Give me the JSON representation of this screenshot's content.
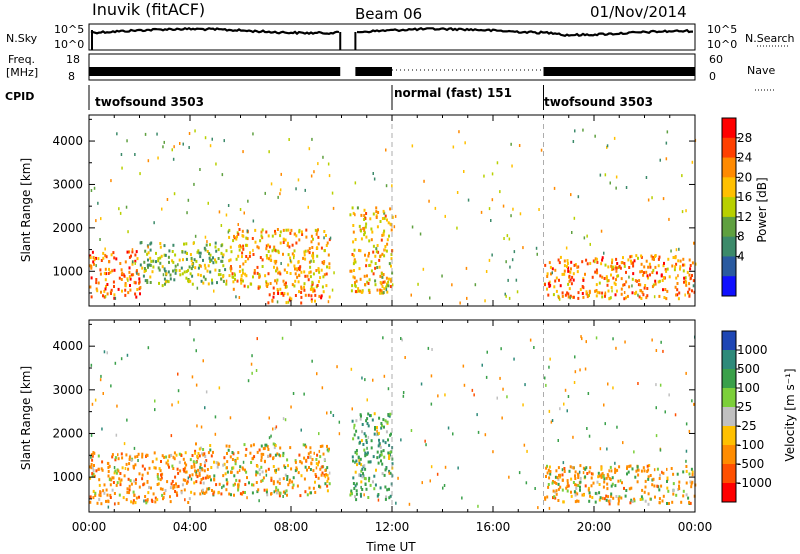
{
  "header": {
    "station": "Inuvik (fitACF)",
    "beam": "Beam 06",
    "date": "01/Nov/2014"
  },
  "nsky_panel": {
    "label": "N.Sky",
    "ytick_top": "10^5",
    "ytick_bottom": "10^0",
    "right_label": "N.Search"
  },
  "freq_panel": {
    "label_line1": "Freq.",
    "label_line2": "[MHz]",
    "ytick_top": "18",
    "ytick_bottom": "8",
    "right_tick_top": "60",
    "right_tick_bottom": "0",
    "right_label": "Nave"
  },
  "cpid_panel": {
    "label": "CPID",
    "segments": [
      {
        "label": "twofsound 3503",
        "start_hour": 0,
        "end_hour": 12
      },
      {
        "label": "normal (fast) 151",
        "start_hour": 12,
        "end_hour": 18
      },
      {
        "label": "twofsound 3503",
        "start_hour": 18,
        "end_hour": 24
      }
    ]
  },
  "power_colorbar": {
    "label": "Power [dB]",
    "ticks": [
      "28",
      "24",
      "20",
      "16",
      "12",
      "8",
      "4"
    ],
    "colors": [
      "#ff0000",
      "#ff4000",
      "#ff8a00",
      "#ffc000",
      "#b8d000",
      "#5fa040",
      "#3c8a6a",
      "#2a5aa0",
      "#1010ff"
    ]
  },
  "velocity_colorbar": {
    "label": "Velocity [m s⁻¹]",
    "ticks": [
      "1000",
      "500",
      "100",
      "25",
      "-25",
      "-100",
      "-500",
      "-1000"
    ],
    "colors": [
      "#1e46b4",
      "#2e8a7a",
      "#3aa04a",
      "#7ccf3a",
      "#c0c0c0",
      "#ffc000",
      "#ff8c00",
      "#ff5000",
      "#ff0000"
    ]
  },
  "chart_data": {
    "type": "heatmap",
    "xlabel": "Time UT",
    "xticks": [
      "00:00",
      "04:00",
      "08:00",
      "12:00",
      "16:00",
      "20:00",
      "00:00"
    ],
    "xlim_hours": [
      0,
      24
    ],
    "ylabel": "Slant Range [km]",
    "yticks": [
      "1000",
      "2000",
      "3000",
      "4000"
    ],
    "ylim_km": [
      200,
      4600
    ],
    "panels": [
      {
        "name": "power",
        "units": "dB",
        "echo_regions": [
          {
            "start_hour": 0.0,
            "end_hour": 2.0,
            "range_km": [
              400,
              1500
            ],
            "value_db": 26
          },
          {
            "start_hour": 2.0,
            "end_hour": 5.5,
            "range_km": [
              700,
              1700
            ],
            "value_db": 14
          },
          {
            "start_hour": 5.5,
            "end_hour": 9.5,
            "range_km": [
              600,
              2000
            ],
            "value_db": 22
          },
          {
            "start_hour": 7.0,
            "end_hour": 9.5,
            "range_km": [
              300,
              600
            ],
            "value_db": 26
          },
          {
            "start_hour": 10.3,
            "end_hour": 12.0,
            "range_km": [
              500,
              2500
            ],
            "value_db": 20
          },
          {
            "start_hour": 18.0,
            "end_hour": 24.0,
            "range_km": [
              400,
              1400
            ],
            "value_db": 24
          }
        ]
      },
      {
        "name": "velocity",
        "units": "m/s",
        "echo_regions": [
          {
            "start_hour": 0.0,
            "end_hour": 4.0,
            "range_km": [
              400,
              1600
            ],
            "value_ms": -300
          },
          {
            "start_hour": 4.0,
            "end_hour": 9.5,
            "range_km": [
              600,
              1800
            ],
            "value_ms": -200
          },
          {
            "start_hour": 10.3,
            "end_hour": 12.0,
            "range_km": [
              500,
              2500
            ],
            "value_ms": 300
          },
          {
            "start_hour": 18.0,
            "end_hour": 24.0,
            "range_km": [
              400,
              1300
            ],
            "value_ms": -150
          }
        ]
      }
    ]
  }
}
